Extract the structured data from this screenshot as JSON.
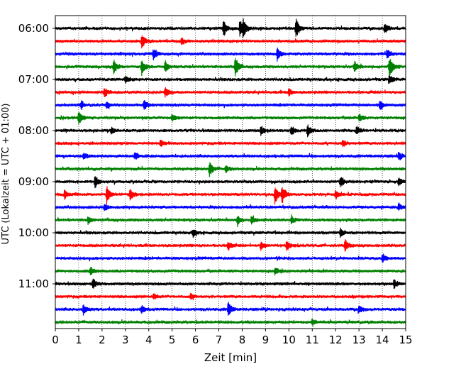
{
  "chart_data": {
    "type": "line",
    "title": "",
    "xlabel": "Zeit  [min]",
    "ylabel": "UTC (Lokalzeit = UTC + 01:00)",
    "xlim": [
      0,
      15
    ],
    "x_ticks": [
      0,
      1,
      2,
      3,
      4,
      5,
      6,
      7,
      8,
      9,
      10,
      11,
      12,
      13,
      14,
      15
    ],
    "x_grid": true,
    "y_tick_labels": [
      "06:00",
      "07:00",
      "08:00",
      "09:00",
      "10:00",
      "11:00"
    ],
    "y_tick_trace_index": [
      0,
      4,
      8,
      12,
      16,
      20
    ],
    "trace_minutes": 15,
    "trace_color_cycle": [
      "#000000",
      "#ff0000",
      "#0000ff",
      "#008000"
    ],
    "series": [
      {
        "name": "06:00",
        "color": "#000000",
        "events": [
          [
            7.2,
            1.0
          ],
          [
            7.9,
            1.2
          ],
          [
            8.05,
            0.9
          ],
          [
            10.3,
            1.3
          ],
          [
            14.1,
            0.7
          ]
        ]
      },
      {
        "name": "06:15",
        "color": "#ff0000",
        "events": [
          [
            3.7,
            0.9
          ],
          [
            5.4,
            0.4
          ]
        ]
      },
      {
        "name": "06:30",
        "color": "#0000ff",
        "events": [
          [
            4.2,
            0.7
          ],
          [
            9.5,
            0.9
          ],
          [
            14.2,
            0.6
          ]
        ]
      },
      {
        "name": "06:45",
        "color": "#008000",
        "events": [
          [
            2.5,
            0.9
          ],
          [
            3.7,
            1.0
          ],
          [
            4.7,
            0.7
          ],
          [
            7.7,
            1.3
          ],
          [
            12.8,
            0.7
          ],
          [
            14.3,
            1.5
          ]
        ]
      },
      {
        "name": "07:00",
        "color": "#000000",
        "events": [
          [
            3.0,
            0.5
          ],
          [
            14.3,
            0.6
          ]
        ]
      },
      {
        "name": "07:15",
        "color": "#ff0000",
        "events": [
          [
            2.1,
            0.6
          ],
          [
            4.7,
            0.6
          ],
          [
            10.0,
            0.5
          ]
        ]
      },
      {
        "name": "07:30",
        "color": "#0000ff",
        "events": [
          [
            1.1,
            0.5
          ],
          [
            2.2,
            0.4
          ],
          [
            3.8,
            0.6
          ],
          [
            13.9,
            0.7
          ]
        ]
      },
      {
        "name": "07:45",
        "color": "#008000",
        "events": [
          [
            1.0,
            1.0
          ],
          [
            5.0,
            0.5
          ],
          [
            13.0,
            0.5
          ]
        ]
      },
      {
        "name": "08:00",
        "color": "#000000",
        "events": [
          [
            2.4,
            0.4
          ],
          [
            8.8,
            0.6
          ],
          [
            10.1,
            0.6
          ],
          [
            10.8,
            0.8
          ],
          [
            12.9,
            0.5
          ]
        ]
      },
      {
        "name": "08:15",
        "color": "#ff0000",
        "events": [
          [
            4.5,
            0.5
          ],
          [
            12.3,
            0.5
          ]
        ]
      },
      {
        "name": "08:30",
        "color": "#0000ff",
        "events": [
          [
            1.2,
            0.4
          ],
          [
            3.4,
            0.4
          ],
          [
            14.7,
            0.5
          ]
        ]
      },
      {
        "name": "08:45",
        "color": "#008000",
        "events": [
          [
            6.6,
            1.1
          ],
          [
            7.3,
            0.4
          ]
        ]
      },
      {
        "name": "09:00",
        "color": "#000000",
        "events": [
          [
            1.7,
            0.8
          ],
          [
            12.2,
            0.7
          ],
          [
            14.7,
            0.5
          ]
        ]
      },
      {
        "name": "09:15",
        "color": "#ff0000",
        "events": [
          [
            0.4,
            0.6
          ],
          [
            2.2,
            1.1
          ],
          [
            3.2,
            0.7
          ],
          [
            9.4,
            1.2
          ],
          [
            9.7,
            1.2
          ],
          [
            12.0,
            0.6
          ]
        ]
      },
      {
        "name": "09:30",
        "color": "#0000ff",
        "events": [
          [
            2.1,
            0.5
          ],
          [
            14.7,
            0.5
          ]
        ]
      },
      {
        "name": "09:45",
        "color": "#008000",
        "events": [
          [
            1.4,
            0.5
          ],
          [
            7.8,
            0.6
          ],
          [
            8.4,
            0.6
          ],
          [
            10.1,
            0.5
          ]
        ]
      },
      {
        "name": "10:00",
        "color": "#000000",
        "events": [
          [
            5.9,
            0.5
          ],
          [
            12.2,
            0.6
          ]
        ]
      },
      {
        "name": "10:15",
        "color": "#ff0000",
        "events": [
          [
            7.4,
            0.6
          ],
          [
            8.8,
            0.5
          ],
          [
            9.9,
            0.6
          ],
          [
            12.4,
            0.8
          ]
        ]
      },
      {
        "name": "10:30",
        "color": "#0000ff",
        "events": [
          [
            14.0,
            0.6
          ]
        ]
      },
      {
        "name": "10:45",
        "color": "#008000",
        "events": [
          [
            1.5,
            0.6
          ],
          [
            9.4,
            0.5
          ]
        ]
      },
      {
        "name": "11:00",
        "color": "#000000",
        "events": [
          [
            1.6,
            0.7
          ],
          [
            14.5,
            0.6
          ]
        ]
      },
      {
        "name": "11:15",
        "color": "#ff0000",
        "events": [
          [
            4.2,
            0.4
          ],
          [
            5.8,
            0.4
          ]
        ]
      },
      {
        "name": "11:30",
        "color": "#0000ff",
        "events": [
          [
            1.2,
            0.6
          ],
          [
            3.7,
            0.6
          ],
          [
            7.4,
            1.1
          ],
          [
            13.0,
            0.5
          ]
        ]
      },
      {
        "name": "11:45",
        "color": "#008000",
        "events": [
          [
            11.0,
            0.4
          ]
        ]
      }
    ]
  }
}
